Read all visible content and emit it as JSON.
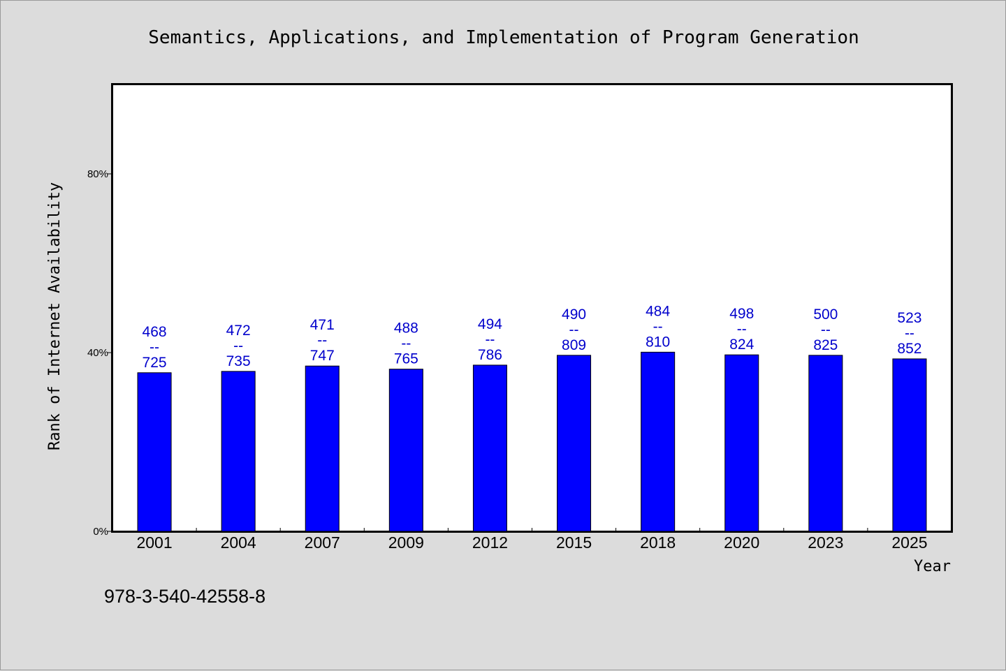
{
  "chart_data": {
    "type": "bar",
    "title": "Semantics, Applications, and Implementation of Program Generation",
    "xlabel": "Year",
    "ylabel": "Rank of Internet Availability",
    "categories": [
      "2001",
      "2004",
      "2007",
      "2009",
      "2012",
      "2015",
      "2018",
      "2020",
      "2023",
      "2025"
    ],
    "values": [
      35.5,
      35.8,
      37.0,
      36.3,
      37.2,
      39.4,
      40.1,
      39.5,
      39.4,
      38.6
    ],
    "value_labels": [
      {
        "top": "468",
        "sep": "--",
        "bottom": "725"
      },
      {
        "top": "472",
        "sep": "--",
        "bottom": "735"
      },
      {
        "top": "471",
        "sep": "--",
        "bottom": "747"
      },
      {
        "top": "488",
        "sep": "--",
        "bottom": "765"
      },
      {
        "top": "494",
        "sep": "--",
        "bottom": "786"
      },
      {
        "top": "490",
        "sep": "--",
        "bottom": "809"
      },
      {
        "top": "484",
        "sep": "--",
        "bottom": "810"
      },
      {
        "top": "498",
        "sep": "--",
        "bottom": "824"
      },
      {
        "top": "500",
        "sep": "--",
        "bottom": "825"
      },
      {
        "top": "523",
        "sep": "--",
        "bottom": "852"
      }
    ],
    "ylim": [
      0,
      100
    ],
    "yticks": [
      0,
      40,
      80
    ],
    "ytick_labels": [
      "0%",
      "40%",
      "80%"
    ],
    "grid": false,
    "bar_color": "#0000ff",
    "label_color": "#0000cc"
  },
  "footnote": "978-3-540-42558-8"
}
